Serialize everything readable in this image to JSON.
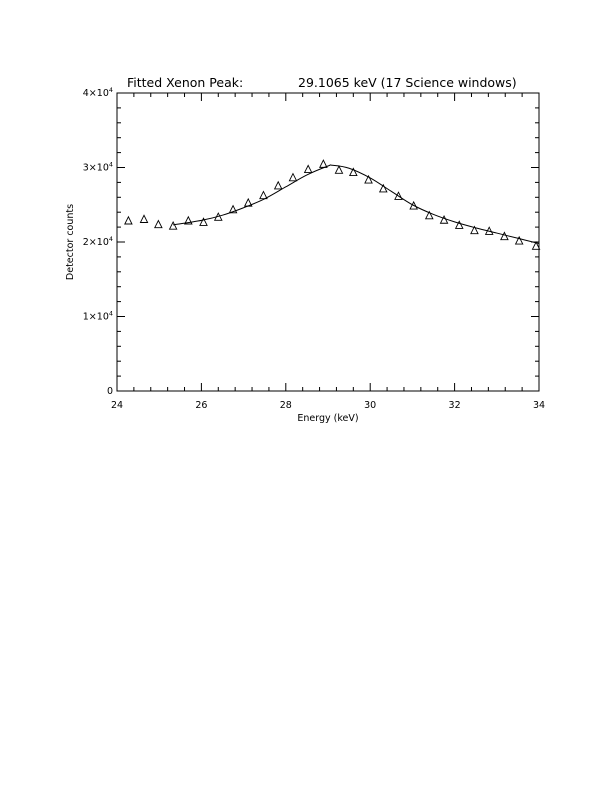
{
  "chart_data": {
    "type": "scatter",
    "title": "Fitted Xenon Peak:",
    "title_right": "29.1065 keV (17 Science windows)",
    "xlabel": "Energy (keV)",
    "ylabel": "Detector counts",
    "xlim": [
      24,
      34
    ],
    "ylim": [
      0,
      40000
    ],
    "x_ticks": [
      24,
      26,
      28,
      30,
      32,
      34
    ],
    "x_tick_labels": [
      "24",
      "26",
      "28",
      "30",
      "32",
      "34"
    ],
    "y_ticks": [
      {
        "value": 0,
        "mantissa": "0",
        "exponent": ""
      },
      {
        "value": 10000,
        "mantissa": "1×10",
        "exponent": "4"
      },
      {
        "value": 20000,
        "mantissa": "2×10",
        "exponent": "4"
      },
      {
        "value": 30000,
        "mantissa": "3×10",
        "exponent": "4"
      },
      {
        "value": 40000,
        "mantissa": "4×10",
        "exponent": "4"
      }
    ],
    "x_minor_step": 0.4,
    "y_minor_step": 2000,
    "grid": false,
    "legend": "none",
    "series": [
      {
        "kind": "points",
        "marker": "open-triangle",
        "x": [
          24.27,
          24.64,
          24.98,
          25.33,
          25.69,
          26.05,
          26.4,
          26.75,
          27.11,
          27.47,
          27.82,
          28.17,
          28.53,
          28.89,
          29.26,
          29.6,
          29.96,
          30.31,
          30.67,
          31.03,
          31.4,
          31.75,
          32.11,
          32.47,
          32.82,
          33.18,
          33.53,
          33.93
        ],
        "y": [
          22900,
          23100,
          22400,
          22200,
          22900,
          22700,
          23400,
          24400,
          25300,
          26300,
          27600,
          28700,
          29800,
          30500,
          29700,
          29400,
          28400,
          27200,
          26200,
          24900,
          23600,
          23000,
          22300,
          21600,
          21500,
          20800,
          20200,
          19500
        ]
      },
      {
        "kind": "fit",
        "x": [
          25.33,
          26.0,
          26.5,
          27.0,
          27.5,
          28.0,
          28.5,
          29.0,
          29.1,
          29.5,
          30.0,
          30.5,
          31.0,
          31.5,
          32.0,
          32.5,
          33.0,
          33.5,
          34.0
        ],
        "y": [
          22300,
          22900,
          23600,
          24600,
          25800,
          27400,
          29000,
          30200,
          30300,
          29900,
          28600,
          26800,
          25000,
          23700,
          22700,
          21900,
          21200,
          20500,
          19800
        ]
      }
    ]
  }
}
